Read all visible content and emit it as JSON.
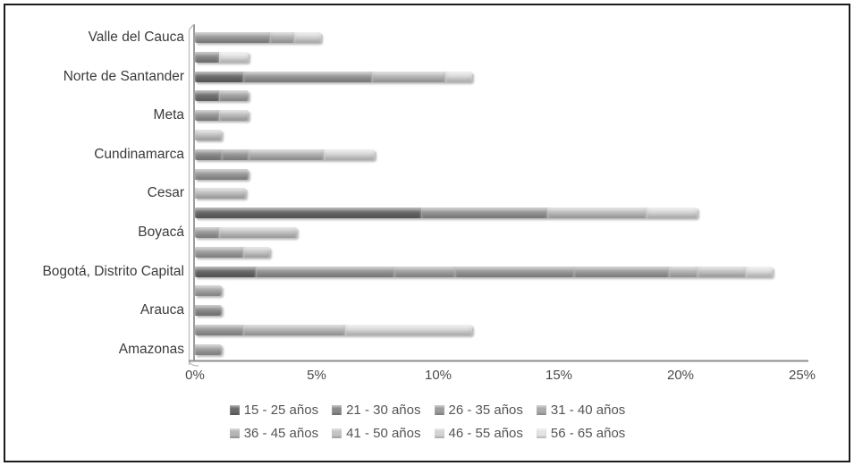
{
  "chart_data": {
    "type": "bar",
    "orientation": "horizontal",
    "stacked": true,
    "title": "",
    "xlabel": "",
    "ylabel": "",
    "xlim": [
      0,
      25
    ],
    "grid": false,
    "legend_position": "bottom",
    "x_ticks": [
      "0%",
      "5%",
      "10%",
      "15%",
      "20%",
      "25%"
    ],
    "legend": [
      {
        "label": "15 - 25 años",
        "color": "#696969"
      },
      {
        "label": "21 - 30 años",
        "color": "#8a8a8a"
      },
      {
        "label": "26 - 35 años",
        "color": "#9c9c9c"
      },
      {
        "label": "31 - 40 años",
        "color": "#ababab"
      },
      {
        "label": "36 - 45 años",
        "color": "#b6b6b6"
      },
      {
        "label": "41 - 50 años",
        "color": "#c4c4c4"
      },
      {
        "label": "46 - 55 años",
        "color": "#d4d4d4"
      },
      {
        "label": "56 - 65 años",
        "color": "#e4e4e4"
      }
    ],
    "bars": [
      {
        "label": "Valle del Cauca",
        "total": 5.2,
        "segments": [
          {
            "value": 3.1,
            "color": "#9b9b9b"
          },
          {
            "value": 1.0,
            "color": "#b8b8b8"
          },
          {
            "value": 1.1,
            "color": "#d8d8d8"
          }
        ]
      },
      {
        "label": "",
        "total": 2.2,
        "segments": [
          {
            "value": 1.0,
            "color": "#8b8b8b"
          },
          {
            "value": 1.2,
            "color": "#e2e2e2"
          }
        ]
      },
      {
        "label": "Norte de Santander",
        "total": 11.4,
        "segments": [
          {
            "value": 2.0,
            "color": "#6e6e6e"
          },
          {
            "value": 5.3,
            "color": "#9b9b9b"
          },
          {
            "value": 3.0,
            "color": "#bababa"
          },
          {
            "value": 1.1,
            "color": "#dcdcdc"
          }
        ]
      },
      {
        "label": "",
        "total": 2.2,
        "segments": [
          {
            "value": 1.0,
            "color": "#757575"
          },
          {
            "value": 1.2,
            "color": "#a8a8a8"
          }
        ]
      },
      {
        "label": "Meta",
        "total": 2.2,
        "segments": [
          {
            "value": 1.0,
            "color": "#9b9b9b"
          },
          {
            "value": 1.2,
            "color": "#c0c0c0"
          }
        ]
      },
      {
        "label": "",
        "total": 1.1,
        "segments": [
          {
            "value": 1.1,
            "color": "#c9c9c9"
          }
        ]
      },
      {
        "label": "Cundinamarca",
        "total": 7.4,
        "segments": [
          {
            "value": 1.1,
            "color": "#8f8f8f"
          },
          {
            "value": 1.1,
            "color": "#9d9d9d"
          },
          {
            "value": 3.1,
            "color": "#b5b5b5"
          },
          {
            "value": 2.1,
            "color": "#dadada"
          }
        ]
      },
      {
        "label": "",
        "total": 2.2,
        "segments": [
          {
            "value": 2.2,
            "color": "#9e9e9e"
          }
        ]
      },
      {
        "label": "Cesar",
        "total": 2.1,
        "segments": [
          {
            "value": 2.1,
            "color": "#c4c4c4"
          }
        ]
      },
      {
        "label": "",
        "total": 20.7,
        "segments": [
          {
            "value": 9.3,
            "color": "#6a6a6a"
          },
          {
            "value": 5.2,
            "color": "#999999"
          },
          {
            "value": 4.1,
            "color": "#c1c1c1"
          },
          {
            "value": 2.1,
            "color": "#d9d9d9"
          }
        ]
      },
      {
        "label": "Boyacá",
        "total": 4.2,
        "segments": [
          {
            "value": 1.0,
            "color": "#9e9e9e"
          },
          {
            "value": 3.2,
            "color": "#c6c6c6"
          }
        ]
      },
      {
        "label": "",
        "total": 3.1,
        "segments": [
          {
            "value": 2.0,
            "color": "#a3a3a3"
          },
          {
            "value": 1.1,
            "color": "#cccccc"
          }
        ]
      },
      {
        "label": "Bogotá, Distrito Capital",
        "total": 23.8,
        "segments": [
          {
            "value": 2.5,
            "color": "#6b6b6b"
          },
          {
            "value": 5.7,
            "color": "#989898"
          },
          {
            "value": 2.5,
            "color": "#a4a4a4"
          },
          {
            "value": 4.9,
            "color": "#9c9c9c"
          },
          {
            "value": 3.9,
            "color": "#a0a0a0"
          },
          {
            "value": 1.2,
            "color": "#b8b8b8"
          },
          {
            "value": 2.0,
            "color": "#c6c6c6"
          },
          {
            "value": 1.1,
            "color": "#e0e0e0"
          }
        ]
      },
      {
        "label": "",
        "total": 1.1,
        "segments": [
          {
            "value": 1.1,
            "color": "#a8a8a8"
          }
        ]
      },
      {
        "label": "Arauca",
        "total": 1.1,
        "segments": [
          {
            "value": 1.1,
            "color": "#8f8f8f"
          }
        ]
      },
      {
        "label": "",
        "total": 11.4,
        "segments": [
          {
            "value": 2.0,
            "color": "#9d9d9d"
          },
          {
            "value": 4.2,
            "color": "#bababa"
          },
          {
            "value": 5.2,
            "color": "#dcdcdc"
          }
        ]
      },
      {
        "label": "Amazonas",
        "total": 1.1,
        "segments": [
          {
            "value": 1.1,
            "color": "#a3a3a3"
          }
        ]
      }
    ]
  }
}
